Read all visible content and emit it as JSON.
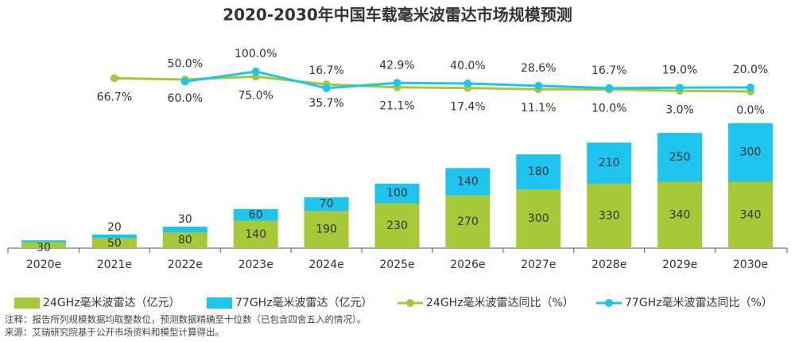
{
  "chart_data": {
    "type": "bar",
    "title": "2020-2030年中国车载毫米波雷达市场规模预测",
    "categories": [
      "2020e",
      "2021e",
      "2022e",
      "2023e",
      "2024e",
      "2025e",
      "2026e",
      "2027e",
      "2028e",
      "2029e",
      "2030e"
    ],
    "stacked": true,
    "ylim": [
      0,
      680
    ],
    "y2lim": [
      0,
      100
    ],
    "series": [
      {
        "name": "24GHz毫米波雷达（亿元）",
        "type": "bar",
        "color": "#a6c93a",
        "values": [
          30,
          50,
          80,
          140,
          190,
          230,
          270,
          300,
          330,
          340,
          340
        ]
      },
      {
        "name": "77GHz毫米波雷达（亿元）",
        "type": "bar",
        "color": "#1fc4ee",
        "values": [
          10,
          20,
          30,
          60,
          70,
          100,
          140,
          180,
          210,
          250,
          300
        ],
        "value_labels": [
          null,
          "20",
          "30",
          "60",
          "70",
          "100",
          "140",
          "180",
          "210",
          "250",
          "300"
        ]
      },
      {
        "name": "24GHz毫米波雷达同比（%）",
        "type": "line",
        "axis": "y2",
        "color": "#a6c93a",
        "values": [
          null,
          66.7,
          60.0,
          75.0,
          35.7,
          21.1,
          17.4,
          11.1,
          10.0,
          3.0,
          0.0
        ],
        "value_labels": [
          null,
          "66.7%",
          "60.0%",
          "75.0%",
          "35.7%",
          "21.1%",
          "17.4%",
          "11.1%",
          "10.0%",
          "3.0%",
          "0.0%"
        ]
      },
      {
        "name": "77GHz毫米波雷达同比（%）",
        "type": "line",
        "axis": "y2",
        "color": "#1fc4ee",
        "values": [
          null,
          null,
          50.0,
          100.0,
          16.7,
          42.9,
          40.0,
          28.6,
          16.7,
          19.0,
          20.0
        ],
        "value_labels": [
          null,
          null,
          "50.0%",
          "100.0%",
          "16.7%",
          "42.9%",
          "40.0%",
          "28.6%",
          "16.7%",
          "19.0%",
          "20.0%"
        ]
      }
    ],
    "notes": [
      "注释：报告所列规模数据均取整数位，预测数据精确至十位数（已包含四舍五入的情况）。",
      "来源：艾瑞研究院基于公开市场资料和模型计算得出。"
    ]
  }
}
